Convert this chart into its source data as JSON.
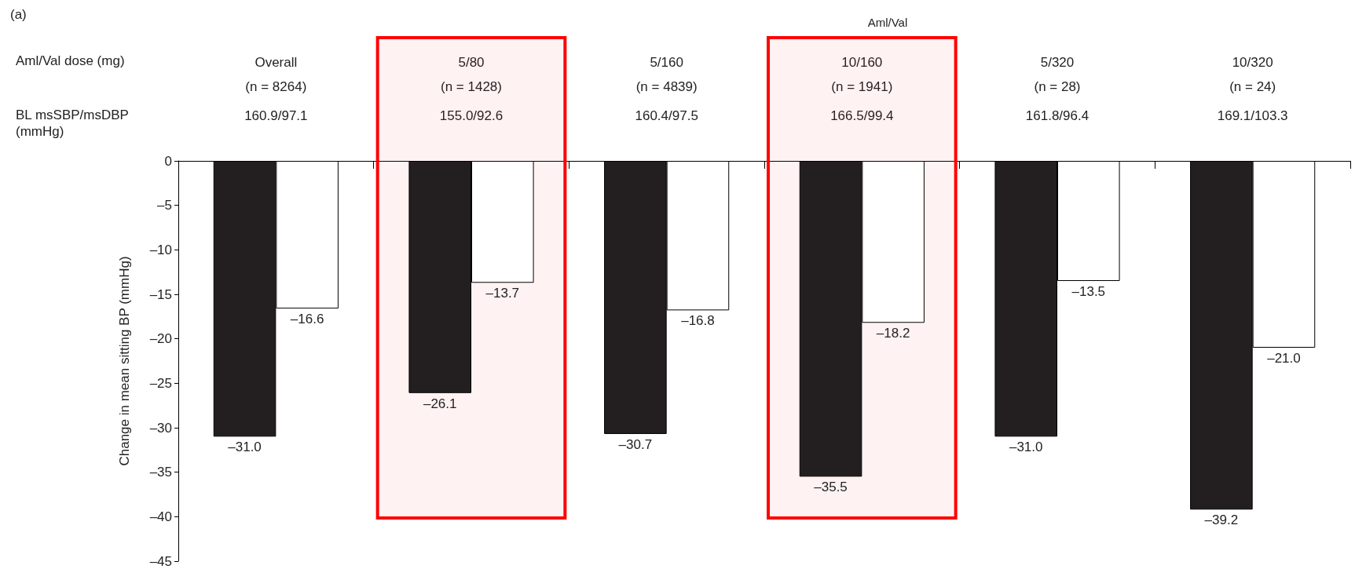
{
  "chart_data": {
    "type": "bar",
    "title": "(a)",
    "ylabel": "Change in mean sitting BP (mmHg)",
    "categories": [
      "Overall",
      "5/80",
      "5/160",
      "10/160",
      "5/320",
      "10/320"
    ],
    "series": [
      {
        "color": "#231f20",
        "values": [
          -31.0,
          -26.1,
          -30.7,
          -35.5,
          -31.0,
          -39.2
        ],
        "value_labels": [
          "–31.0",
          "–26.1",
          "–30.7",
          "–35.5",
          "–31.0",
          "–39.2"
        ]
      },
      {
        "color": "#ffffff",
        "values": [
          -16.6,
          -13.7,
          -16.8,
          -18.2,
          -13.5,
          -21.0
        ],
        "value_labels": [
          "–16.6",
          "–13.7",
          "–16.8",
          "–18.2",
          "–13.5",
          "–21.0"
        ]
      }
    ],
    "ylim": [
      -45,
      0
    ],
    "yticks": [
      0,
      {
        "value": -5,
        "label": "–5"
      },
      {
        "value": -10,
        "label": "–10"
      },
      {
        "value": -15,
        "label": "–15"
      },
      {
        "value": -20,
        "label": "–20"
      },
      {
        "value": -25,
        "label": "–25"
      },
      {
        "value": -30,
        "label": "–30"
      },
      {
        "value": -35,
        "label": "–35"
      },
      {
        "value": -40,
        "label": "–40"
      },
      {
        "value": -45,
        "label": "–45"
      }
    ],
    "annotations": [
      "Aml/Val",
      "Aml/Val dose (mg)",
      "BL msSBP/msDBP\n(mmHg)",
      "(n = 8264)",
      "(n = 1428)",
      "(n = 4839)",
      "(n = 1941)",
      "(n = 28)",
      "(n = 24)",
      "160.9/97.1",
      "155.0/92.6",
      "160.4/97.5",
      "166.5/99.4",
      "161.8/96.4",
      "169.1/103.3"
    ],
    "bands": [
      {
        "axis": "x",
        "from": "5/80",
        "to": "5/80",
        "color": "#ff0000"
      },
      {
        "axis": "x",
        "from": "10/160",
        "to": "10/160",
        "color": "#ff0000"
      }
    ],
    "grid": false
  }
}
